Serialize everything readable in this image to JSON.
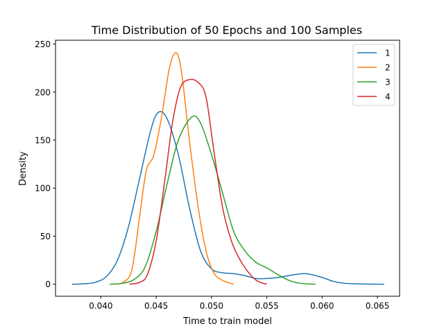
{
  "chart_data": {
    "type": "line",
    "title": "Time Distribution of 50 Epochs and 100 Samples",
    "xlabel": "Time to train model",
    "ylabel": "Density",
    "xlim": [
      0.0359,
      0.067
    ],
    "ylim": [
      -12.5,
      254
    ],
    "xticks": [
      0.04,
      0.045,
      0.05,
      0.055,
      0.06,
      0.065
    ],
    "xtick_labels": [
      "0.040",
      "0.045",
      "0.050",
      "0.055",
      "0.060",
      "0.065"
    ],
    "yticks": [
      0,
      50,
      100,
      150,
      200,
      250
    ],
    "ytick_labels": [
      "0",
      "50",
      "100",
      "150",
      "200",
      "250"
    ],
    "grid": false,
    "legend": "top-right",
    "series": [
      {
        "name": "1",
        "color": "#1f77b4",
        "points": [
          [
            0.0374,
            0
          ],
          [
            0.0385,
            0.5
          ],
          [
            0.0395,
            2
          ],
          [
            0.0405,
            8
          ],
          [
            0.0415,
            25
          ],
          [
            0.0425,
            60
          ],
          [
            0.0435,
            110
          ],
          [
            0.0445,
            160
          ],
          [
            0.0452,
            179
          ],
          [
            0.046,
            172
          ],
          [
            0.047,
            135
          ],
          [
            0.048,
            80
          ],
          [
            0.049,
            35
          ],
          [
            0.05,
            16
          ],
          [
            0.051,
            12
          ],
          [
            0.052,
            11
          ],
          [
            0.053,
            9
          ],
          [
            0.054,
            6
          ],
          [
            0.055,
            6
          ],
          [
            0.056,
            7
          ],
          [
            0.057,
            9
          ],
          [
            0.0585,
            11
          ],
          [
            0.06,
            7
          ],
          [
            0.061,
            3
          ],
          [
            0.062,
            1
          ],
          [
            0.0635,
            0.3
          ],
          [
            0.0656,
            0
          ]
        ]
      },
      {
        "name": "2",
        "color": "#ff7f0e",
        "points": [
          [
            0.0411,
            0
          ],
          [
            0.042,
            2
          ],
          [
            0.0428,
            15
          ],
          [
            0.0435,
            70
          ],
          [
            0.0441,
            118
          ],
          [
            0.0448,
            135
          ],
          [
            0.0455,
            175
          ],
          [
            0.0462,
            225
          ],
          [
            0.0468,
            241
          ],
          [
            0.0473,
            220
          ],
          [
            0.048,
            150
          ],
          [
            0.0488,
            80
          ],
          [
            0.0495,
            35
          ],
          [
            0.0502,
            12
          ],
          [
            0.051,
            4
          ],
          [
            0.052,
            0
          ]
        ]
      },
      {
        "name": "3",
        "color": "#2ca02c",
        "points": [
          [
            0.0408,
            0
          ],
          [
            0.042,
            1
          ],
          [
            0.043,
            5
          ],
          [
            0.044,
            18
          ],
          [
            0.045,
            55
          ],
          [
            0.046,
            105
          ],
          [
            0.047,
            150
          ],
          [
            0.0482,
            174
          ],
          [
            0.049,
            168
          ],
          [
            0.05,
            135
          ],
          [
            0.051,
            95
          ],
          [
            0.052,
            55
          ],
          [
            0.053,
            35
          ],
          [
            0.054,
            23
          ],
          [
            0.055,
            17
          ],
          [
            0.056,
            10
          ],
          [
            0.057,
            4
          ],
          [
            0.058,
            1
          ],
          [
            0.0594,
            0
          ]
        ]
      },
      {
        "name": "4",
        "color": "#d62728",
        "points": [
          [
            0.0426,
            0
          ],
          [
            0.0435,
            2
          ],
          [
            0.0442,
            10
          ],
          [
            0.045,
            45
          ],
          [
            0.0458,
            110
          ],
          [
            0.0465,
            170
          ],
          [
            0.0472,
            205
          ],
          [
            0.048,
            213
          ],
          [
            0.0488,
            210
          ],
          [
            0.0495,
            195
          ],
          [
            0.0502,
            140
          ],
          [
            0.051,
            80
          ],
          [
            0.0518,
            45
          ],
          [
            0.0526,
            25
          ],
          [
            0.0535,
            10
          ],
          [
            0.0542,
            3
          ],
          [
            0.055,
            0
          ]
        ]
      }
    ]
  }
}
